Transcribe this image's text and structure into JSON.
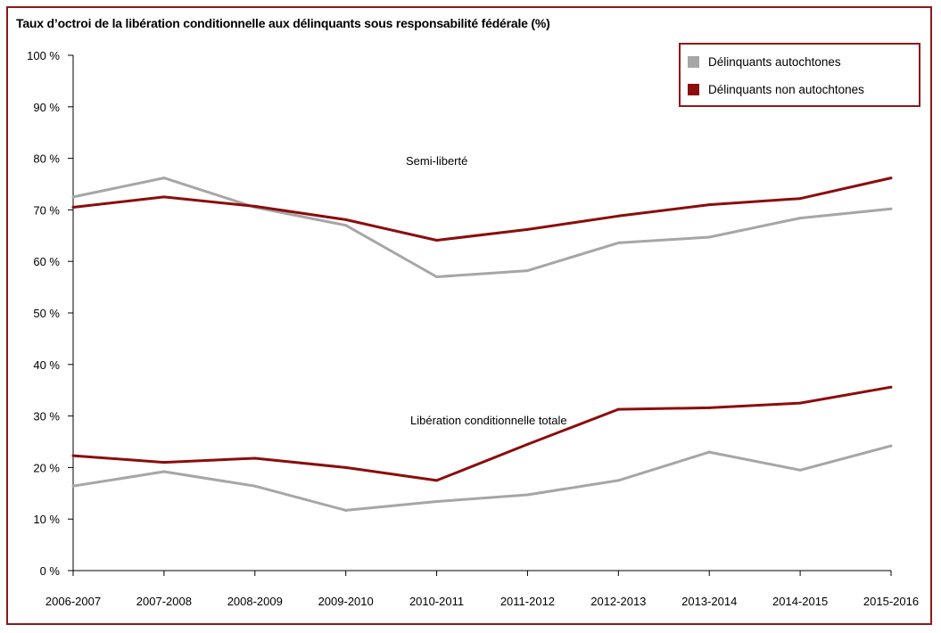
{
  "chart_data": {
    "type": "line",
    "title": "Taux d’octroi de la libération conditionnelle aux délinquants sous responsabilité fédérale (%)",
    "xlabel": "",
    "ylabel": "",
    "categories": [
      "2006-2007",
      "2007-2008",
      "2008-2009",
      "2009-2010",
      "2010-2011",
      "2011-2012",
      "2012-2013",
      "2013-2014",
      "2014-2015",
      "2015-2016"
    ],
    "ylim": [
      0,
      100
    ],
    "yticks": [
      0,
      10,
      20,
      30,
      40,
      50,
      60,
      70,
      80,
      90,
      100
    ],
    "ytick_labels": [
      "0 %",
      "10 %",
      "20 %",
      "30 %",
      "40 %",
      "50 %",
      "60 %",
      "70 %",
      "80 %",
      "90 %",
      "100 %"
    ],
    "grid": false,
    "legend_position": "top-right",
    "legend": [
      {
        "label": "Délinquants autochtones",
        "color": "#a6a6a6"
      },
      {
        "label": "Délinquants non autochtones",
        "color": "#8b0d0d"
      }
    ],
    "annotations": [
      {
        "text": "Semi-liberté",
        "group": "semi"
      },
      {
        "text": "Libération conditionnelle totale",
        "group": "totale"
      }
    ],
    "series": [
      {
        "group": "semi",
        "legend_index": 0,
        "color": "#a6a6a6",
        "values": [
          72.5,
          76.2,
          70.5,
          67.0,
          57.0,
          58.2,
          63.6,
          64.7,
          68.4,
          70.2
        ]
      },
      {
        "group": "semi",
        "legend_index": 1,
        "color": "#8b0d0d",
        "values": [
          70.5,
          72.5,
          70.7,
          68.1,
          64.1,
          66.2,
          68.8,
          71.0,
          72.2,
          76.2
        ]
      },
      {
        "group": "totale",
        "legend_index": 0,
        "color": "#a6a6a6",
        "values": [
          16.4,
          19.2,
          16.4,
          11.7,
          13.4,
          14.7,
          17.5,
          23.0,
          19.5,
          24.2
        ]
      },
      {
        "group": "totale",
        "legend_index": 1,
        "color": "#8b0d0d",
        "values": [
          22.3,
          21.0,
          21.8,
          20.0,
          17.5,
          24.5,
          31.3,
          31.6,
          32.5,
          35.6
        ]
      }
    ]
  }
}
